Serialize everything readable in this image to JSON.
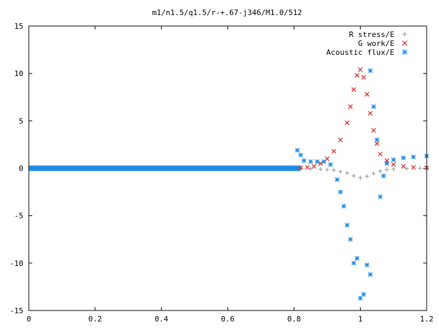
{
  "chart_data": {
    "type": "scatter",
    "title": "m1/n1.5/q1.5/r-+.67-j346/M1.0/512",
    "xlabel": "",
    "ylabel": "",
    "xlim": [
      0,
      1.2
    ],
    "ylim": [
      -15,
      15
    ],
    "x_ticks": [
      "0",
      "0.2",
      "0.4",
      "0.6",
      "0.8",
      "1",
      "1.2"
    ],
    "y_ticks": [
      "15",
      "10",
      "5",
      "0",
      "-5",
      "-10",
      "-15"
    ],
    "legend_position": "top-right",
    "series": [
      {
        "name": "R stress/E",
        "marker": "plus",
        "color": "#a0a0a0",
        "points": [
          [
            0.82,
            0
          ],
          [
            0.85,
            -0.05
          ],
          [
            0.88,
            -0.1
          ],
          [
            0.9,
            -0.15
          ],
          [
            0.92,
            -0.2
          ],
          [
            0.94,
            -0.35
          ],
          [
            0.96,
            -0.5
          ],
          [
            0.98,
            -0.8
          ],
          [
            1.0,
            -1.0
          ],
          [
            1.02,
            -0.85
          ],
          [
            1.04,
            -0.55
          ],
          [
            1.06,
            -0.3
          ],
          [
            1.08,
            -0.15
          ],
          [
            1.1,
            -0.08
          ],
          [
            1.14,
            -0.03
          ],
          [
            1.18,
            0
          ],
          [
            1.2,
            0
          ]
        ]
      },
      {
        "name": "G work/E",
        "marker": "x",
        "color": "#d62020",
        "points": [
          [
            0.82,
            0.05
          ],
          [
            0.84,
            0.1
          ],
          [
            0.86,
            0.2
          ],
          [
            0.88,
            0.5
          ],
          [
            0.9,
            1
          ],
          [
            0.92,
            1.8
          ],
          [
            0.94,
            3
          ],
          [
            0.96,
            4.8
          ],
          [
            0.97,
            6.5
          ],
          [
            0.98,
            8.3
          ],
          [
            0.99,
            9.8
          ],
          [
            1.0,
            10.4
          ],
          [
            1.01,
            9.6
          ],
          [
            1.02,
            7.8
          ],
          [
            1.03,
            5.8
          ],
          [
            1.04,
            4
          ],
          [
            1.05,
            2.6
          ],
          [
            1.06,
            1.5
          ],
          [
            1.08,
            0.8
          ],
          [
            1.1,
            0.4
          ],
          [
            1.13,
            0.2
          ],
          [
            1.16,
            0.1
          ],
          [
            1.2,
            0.05
          ]
        ]
      },
      {
        "name": "Acoustic flux/E",
        "marker": "star",
        "color": "#1e8ce6",
        "points": [
          [
            0.81,
            1.9
          ],
          [
            0.82,
            1.4
          ],
          [
            0.83,
            0.8
          ],
          [
            0.85,
            0.7
          ],
          [
            0.87,
            0.7
          ],
          [
            0.89,
            0.7
          ],
          [
            0.91,
            0.4
          ],
          [
            0.93,
            -1.2
          ],
          [
            0.94,
            -2.5
          ],
          [
            0.95,
            -4
          ],
          [
            0.96,
            -6
          ],
          [
            0.97,
            -7.5
          ],
          [
            0.98,
            -10
          ],
          [
            0.99,
            -9.5
          ],
          [
            1.0,
            -13.7
          ],
          [
            1.01,
            -13.3
          ],
          [
            1.02,
            -10.2
          ],
          [
            1.03,
            -11.2
          ],
          [
            1.03,
            10.3
          ],
          [
            1.04,
            6.5
          ],
          [
            1.05,
            3
          ],
          [
            1.06,
            -3
          ],
          [
            1.07,
            -0.8
          ],
          [
            1.08,
            0.5
          ],
          [
            1.1,
            0.9
          ],
          [
            1.13,
            1.1
          ],
          [
            1.16,
            1.2
          ],
          [
            1.2,
            1.3
          ]
        ]
      }
    ]
  }
}
